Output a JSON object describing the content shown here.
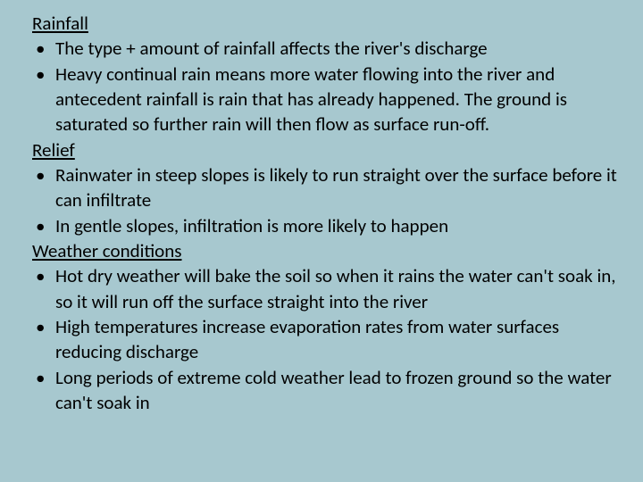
{
  "background_color": "#a7c8cf",
  "text_color": "#000000",
  "font_family": "Calibri",
  "base_fontsize": 21,
  "sections": {
    "rainfall": {
      "heading": "Rainfall",
      "bullets": [
        "The type + amount of rainfall affects the river's discharge",
        "Heavy continual rain means more water flowing into the river and antecedent rainfall is rain that has already happened. The ground is saturated so further rain will then flow as surface run-off."
      ]
    },
    "relief": {
      "heading": "Relief",
      "bullets": [
        "Rainwater in steep slopes is likely to run straight over the surface before it can infiltrate",
        "In gentle slopes, infiltration is more likely to happen"
      ]
    },
    "weather": {
      "heading": "Weather conditions",
      "bullets": [
        "Hot dry weather will bake the soil so when it rains the water can't soak in, so it will run off the surface straight into the river",
        "High temperatures increase evaporation rates from water surfaces reducing discharge",
        "Long periods of extreme cold weather lead to frozen ground so the water can't soak in"
      ]
    }
  }
}
